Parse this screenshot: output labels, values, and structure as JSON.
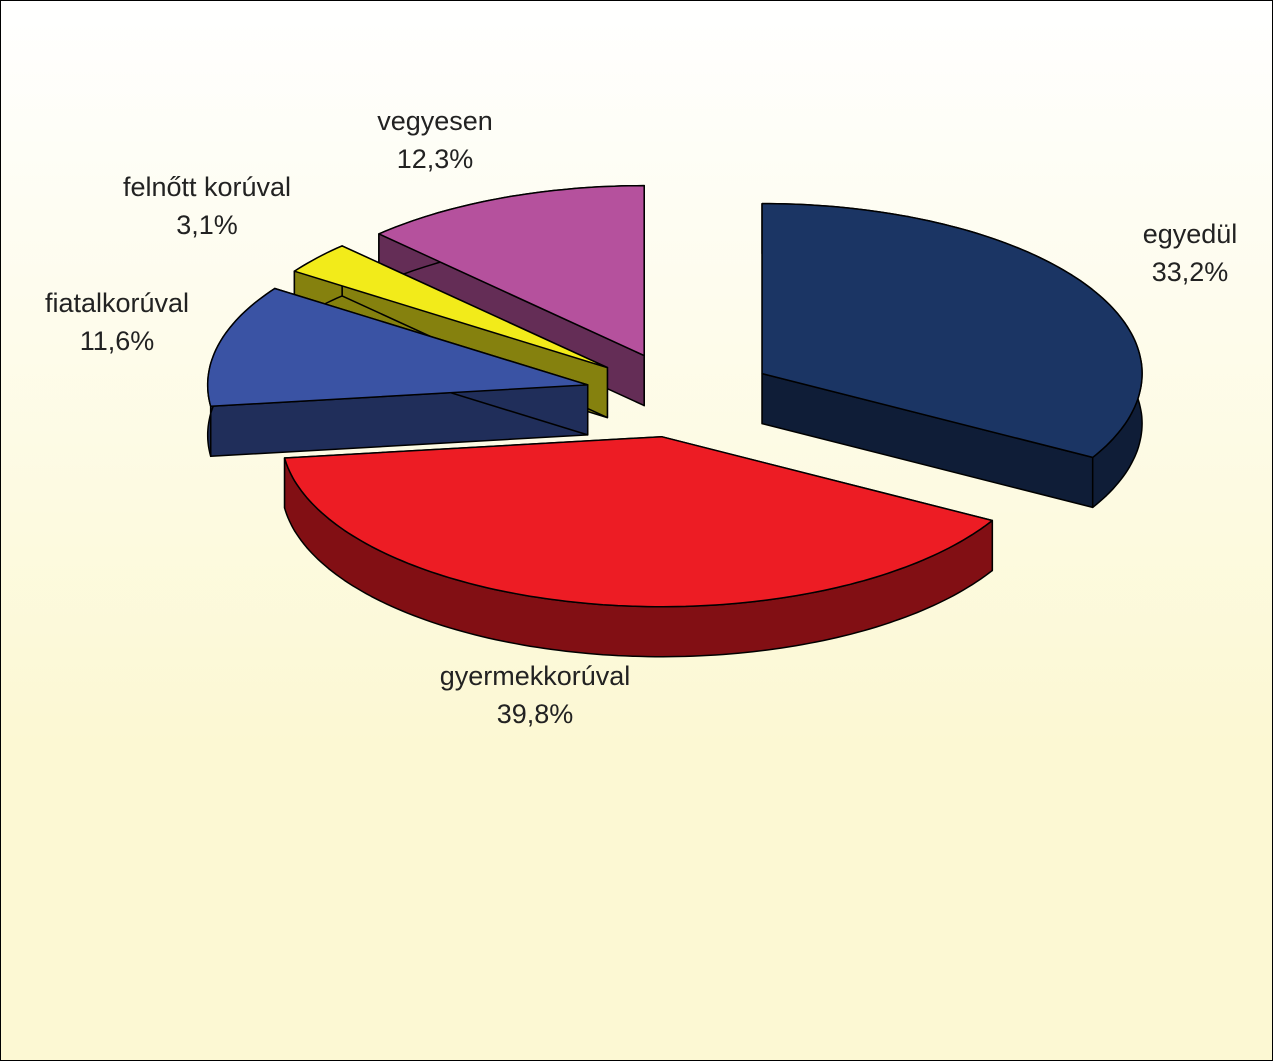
{
  "chart_data": {
    "type": "pie3d",
    "categories": [
      "egyedül",
      "gyermekkorúval",
      "fiatalkorúval",
      "felnőtt korúval",
      "vegyesen"
    ],
    "values": [
      33.2,
      39.8,
      11.6,
      3.1,
      12.3
    ],
    "value_labels": [
      "33,2%",
      "39,8%",
      "11,6%",
      "3,1%",
      "12,3%"
    ],
    "colors": [
      "#1b3564",
      "#ed1c24",
      "#3a53a4",
      "#f2eb1a",
      "#b5519d"
    ]
  }
}
